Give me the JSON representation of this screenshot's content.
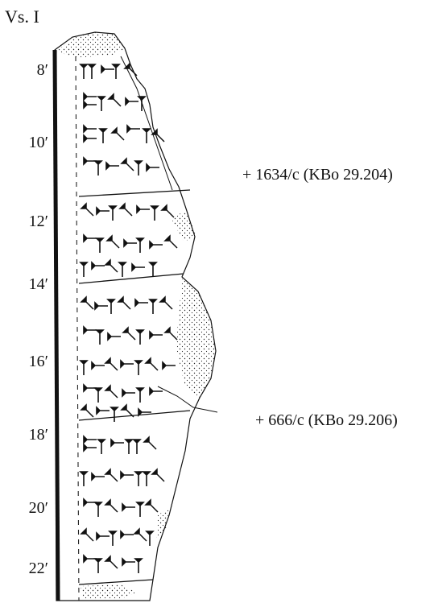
{
  "side_label": "Vs. I",
  "line_numbers": [
    "8′",
    "10′",
    "12′",
    "14′",
    "16′",
    "18′",
    "20′",
    "22′"
  ],
  "joins": [
    "+ 1634/c (KBo 29.204)",
    "+ 666/c (KBo 29.206)"
  ]
}
